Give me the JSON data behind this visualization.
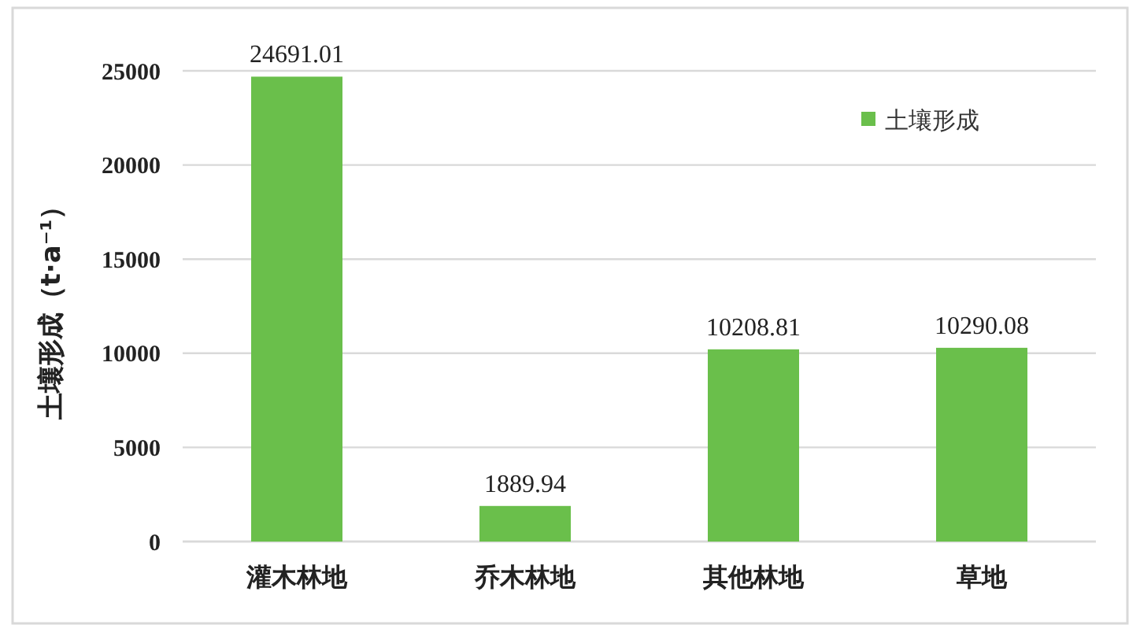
{
  "chart_data": {
    "type": "bar",
    "categories": [
      "灌木林地",
      "乔木林地",
      "其他林地",
      "草地"
    ],
    "series": [
      {
        "name": "土壤形成",
        "color": "#6abf4b",
        "values": [
          24691.01,
          1889.94,
          10208.81,
          10290.08
        ]
      }
    ],
    "ylabel": "土壤形成（t·a⁻¹）",
    "ylim": [
      0,
      25000
    ],
    "yticks": [
      0,
      5000,
      10000,
      15000,
      20000,
      25000
    ],
    "grid": "y",
    "legend": "top right",
    "data_labels": true
  }
}
